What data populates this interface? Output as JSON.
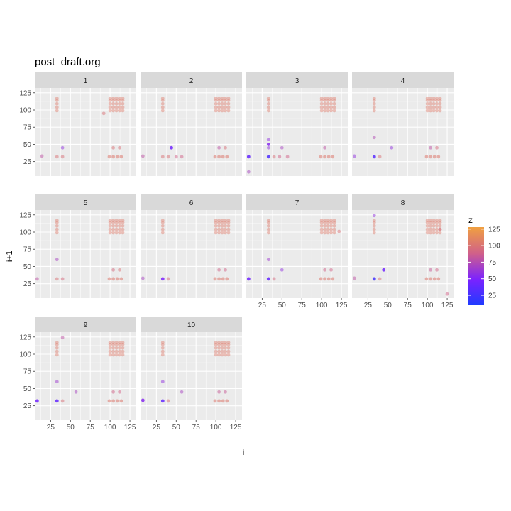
{
  "chart_data": {
    "type": "scatter",
    "title": "post_draft.org",
    "xlabel": "i",
    "ylabel": "i+1",
    "facet_labels": [
      "1",
      "2",
      "3",
      "4",
      "5",
      "6",
      "7",
      "8",
      "9",
      "10"
    ],
    "xlim": [
      5,
      133
    ],
    "ylim": [
      4,
      132
    ],
    "x_ticks": [
      25,
      50,
      75,
      100,
      125
    ],
    "y_ticks": [
      25,
      50,
      75,
      100,
      125
    ],
    "grid": true,
    "legend": {
      "title": "z",
      "position": "right",
      "ticks": [
        "125",
        "100",
        "75",
        "50",
        "25"
      ],
      "tick_values": [
        125,
        100,
        75,
        50,
        25
      ],
      "range": [
        10,
        128
      ],
      "colors": [
        "#1f3bff",
        "#7b22ff",
        "#d0608a",
        "#f0a040"
      ]
    },
    "cluster": {
      "xs": [
        100,
        104,
        108,
        112,
        116
      ],
      "ys": [
        99,
        104,
        109,
        114,
        117
      ],
      "z": 105
    },
    "column_points": {
      "x": 33,
      "ys": [
        99,
        104,
        109,
        114,
        117
      ],
      "z": 105
    },
    "row_points": {
      "y": 32,
      "xs": [
        99,
        104,
        109,
        114
      ],
      "z": 104
    },
    "facets": [
      {
        "label": "1",
        "points": [
          {
            "x": 33,
            "y": 32,
            "z": 100
          },
          {
            "x": 40,
            "y": 32,
            "z": 98
          },
          {
            "x": 104,
            "y": 45,
            "z": 100
          },
          {
            "x": 112,
            "y": 45,
            "z": 98
          },
          {
            "x": 92,
            "y": 95,
            "z": 100
          },
          {
            "x": 40,
            "y": 45,
            "z": 60
          },
          {
            "x": 14,
            "y": 33,
            "z": 80
          }
        ]
      },
      {
        "label": "2",
        "points": [
          {
            "x": 44,
            "y": 45,
            "z": 45
          },
          {
            "x": 33,
            "y": 32,
            "z": 100
          },
          {
            "x": 40,
            "y": 32,
            "z": 100
          },
          {
            "x": 50,
            "y": 32,
            "z": 90
          },
          {
            "x": 57,
            "y": 32,
            "z": 90
          },
          {
            "x": 112,
            "y": 45,
            "z": 98
          },
          {
            "x": 8,
            "y": 33,
            "z": 80
          },
          {
            "x": 104,
            "y": 45,
            "z": 80
          }
        ]
      },
      {
        "label": "3",
        "points": [
          {
            "x": 33,
            "y": 32,
            "z": 30
          },
          {
            "x": 8,
            "y": 32,
            "z": 40
          },
          {
            "x": 40,
            "y": 32,
            "z": 98
          },
          {
            "x": 33,
            "y": 57,
            "z": 60
          },
          {
            "x": 33,
            "y": 50,
            "z": 55
          },
          {
            "x": 33,
            "y": 45,
            "z": 60
          },
          {
            "x": 50,
            "y": 45,
            "z": 70
          },
          {
            "x": 47,
            "y": 32,
            "z": 90
          },
          {
            "x": 57,
            "y": 32,
            "z": 90
          },
          {
            "x": 8,
            "y": 10,
            "z": 70
          },
          {
            "x": 104,
            "y": 45,
            "z": 80
          }
        ]
      },
      {
        "label": "4",
        "points": [
          {
            "x": 33,
            "y": 32,
            "z": 35
          },
          {
            "x": 8,
            "y": 33,
            "z": 60
          },
          {
            "x": 33,
            "y": 60,
            "z": 75
          },
          {
            "x": 40,
            "y": 32,
            "z": 100
          },
          {
            "x": 112,
            "y": 45,
            "z": 95
          },
          {
            "x": 55,
            "y": 45,
            "z": 60
          },
          {
            "x": 104,
            "y": 45,
            "z": 80
          }
        ]
      },
      {
        "label": "5",
        "points": [
          {
            "x": 33,
            "y": 32,
            "z": 100
          },
          {
            "x": 40,
            "y": 32,
            "z": 95
          },
          {
            "x": 8,
            "y": 32,
            "z": 80
          },
          {
            "x": 104,
            "y": 45,
            "z": 95
          },
          {
            "x": 112,
            "y": 45,
            "z": 100
          },
          {
            "x": 33,
            "y": 60,
            "z": 70
          }
        ]
      },
      {
        "label": "6",
        "points": [
          {
            "x": 33,
            "y": 32,
            "z": 50
          },
          {
            "x": 8,
            "y": 33,
            "z": 70
          },
          {
            "x": 40,
            "y": 32,
            "z": 95
          },
          {
            "x": 104,
            "y": 45,
            "z": 90
          },
          {
            "x": 112,
            "y": 45,
            "z": 90
          }
        ]
      },
      {
        "label": "7",
        "points": [
          {
            "x": 33,
            "y": 32,
            "z": 40
          },
          {
            "x": 8,
            "y": 32,
            "z": 45
          },
          {
            "x": 40,
            "y": 32,
            "z": 95
          },
          {
            "x": 50,
            "y": 45,
            "z": 60
          },
          {
            "x": 33,
            "y": 60,
            "z": 65
          },
          {
            "x": 104,
            "y": 45,
            "z": 90
          },
          {
            "x": 112,
            "y": 45,
            "z": 90
          },
          {
            "x": 122,
            "y": 101,
            "z": 100
          }
        ]
      },
      {
        "label": "8",
        "points": [
          {
            "x": 33,
            "y": 32,
            "z": 25
          },
          {
            "x": 45,
            "y": 45,
            "z": 45
          },
          {
            "x": 40,
            "y": 32,
            "z": 100
          },
          {
            "x": 33,
            "y": 124,
            "z": 60
          },
          {
            "x": 125,
            "y": 10,
            "z": 90
          },
          {
            "x": 104,
            "y": 45,
            "z": 85
          },
          {
            "x": 112,
            "y": 45,
            "z": 90
          },
          {
            "x": 8,
            "y": 33,
            "z": 80
          },
          {
            "x": 116,
            "y": 104,
            "z": 95
          }
        ]
      },
      {
        "label": "9",
        "points": [
          {
            "x": 33,
            "y": 32,
            "z": 40
          },
          {
            "x": 8,
            "y": 32,
            "z": 45
          },
          {
            "x": 33,
            "y": 60,
            "z": 65
          },
          {
            "x": 40,
            "y": 32,
            "z": 98
          },
          {
            "x": 104,
            "y": 45,
            "z": 90
          },
          {
            "x": 112,
            "y": 45,
            "z": 90
          },
          {
            "x": 40,
            "y": 124,
            "z": 80
          },
          {
            "x": 57,
            "y": 45,
            "z": 70
          }
        ]
      },
      {
        "label": "10",
        "points": [
          {
            "x": 33,
            "y": 32,
            "z": 40
          },
          {
            "x": 8,
            "y": 33,
            "z": 55
          },
          {
            "x": 33,
            "y": 60,
            "z": 60
          },
          {
            "x": 40,
            "y": 32,
            "z": 98
          },
          {
            "x": 104,
            "y": 45,
            "z": 85
          },
          {
            "x": 112,
            "y": 45,
            "z": 85
          },
          {
            "x": 57,
            "y": 45,
            "z": 70
          }
        ]
      }
    ]
  }
}
